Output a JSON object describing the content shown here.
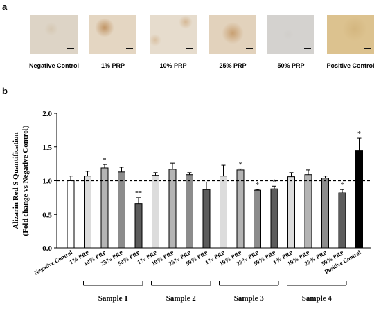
{
  "panel_a": {
    "letter": "a",
    "images": [
      {
        "label": "Negative Control",
        "tone": "#ddd4c6",
        "spot": "#c7b08e"
      },
      {
        "label": "1% PRP",
        "tone": "#e4d6c2",
        "spot": "#b8844d"
      },
      {
        "label": "10% PRP",
        "tone": "#e6dccd",
        "spot": "#caa070"
      },
      {
        "label": "25% PRP",
        "tone": "#e2d2bc",
        "spot": "#bd8a52"
      },
      {
        "label": "50% PRP",
        "tone": "#d4d2cf",
        "spot": "#bfbab3"
      },
      {
        "label": "Positive Control",
        "tone": "#dcc28f",
        "spot": "#c4a062"
      }
    ]
  },
  "panel_b": {
    "letter": "b"
  },
  "chart_data": {
    "type": "bar",
    "ylabel_line1": "Alizarin Red S Quantification",
    "ylabel_line2": "(Fold change vs Negative Control)",
    "ylim": [
      0,
      2.0
    ],
    "yticks": [
      "0.0",
      "0.5",
      "1.0",
      "1.5",
      "2.0"
    ],
    "reference_line": 1.0,
    "bars": [
      {
        "label": "Negative Control",
        "value": 1.0,
        "error": 0.07,
        "color": "#ffffff",
        "sig": ""
      },
      {
        "label": "1% PRP",
        "value": 1.07,
        "error": 0.07,
        "color": "#dcdcdc",
        "sig": ""
      },
      {
        "label": "10% PRP",
        "value": 1.19,
        "error": 0.05,
        "color": "#b4b4b4",
        "sig": "*"
      },
      {
        "label": "25% PRP",
        "value": 1.13,
        "error": 0.07,
        "color": "#8c8c8c",
        "sig": ""
      },
      {
        "label": "50% PRP",
        "value": 0.66,
        "error": 0.09,
        "color": "#5c5c5c",
        "sig": "**"
      },
      {
        "label": "1% PRP",
        "value": 1.08,
        "error": 0.04,
        "color": "#dcdcdc",
        "sig": ""
      },
      {
        "label": "10% PRP",
        "value": 1.17,
        "error": 0.09,
        "color": "#b4b4b4",
        "sig": ""
      },
      {
        "label": "25% PRP",
        "value": 1.09,
        "error": 0.03,
        "color": "#8c8c8c",
        "sig": ""
      },
      {
        "label": "50% PRP",
        "value": 0.87,
        "error": 0.11,
        "color": "#5c5c5c",
        "sig": ""
      },
      {
        "label": "1% PRP",
        "value": 1.07,
        "error": 0.16,
        "color": "#dcdcdc",
        "sig": ""
      },
      {
        "label": "10% PRP",
        "value": 1.16,
        "error": 0.015,
        "color": "#b4b4b4",
        "sig": "*"
      },
      {
        "label": "25% PRP",
        "value": 0.86,
        "error": 0.01,
        "color": "#8c8c8c",
        "sig": "*"
      },
      {
        "label": "50% PRP",
        "value": 0.88,
        "error": 0.04,
        "color": "#5c5c5c",
        "sig": "*"
      },
      {
        "label": "1% PRP",
        "value": 1.06,
        "error": 0.06,
        "color": "#dcdcdc",
        "sig": ""
      },
      {
        "label": "10% PRP",
        "value": 1.09,
        "error": 0.07,
        "color": "#b4b4b4",
        "sig": ""
      },
      {
        "label": "25% PRP",
        "value": 1.04,
        "error": 0.03,
        "color": "#8c8c8c",
        "sig": ""
      },
      {
        "label": "50% PRP",
        "value": 0.82,
        "error": 0.05,
        "color": "#5c5c5c",
        "sig": "*"
      },
      {
        "label": "Positive Control",
        "value": 1.45,
        "error": 0.18,
        "color": "#000000",
        "sig": "*"
      }
    ],
    "groups": [
      {
        "name": "Sample 1",
        "bars": [
          1,
          4
        ]
      },
      {
        "name": "Sample 2",
        "bars": [
          5,
          8
        ]
      },
      {
        "name": "Sample 3",
        "bars": [
          9,
          12
        ]
      },
      {
        "name": "Sample 4",
        "bars": [
          13,
          16
        ]
      }
    ]
  }
}
